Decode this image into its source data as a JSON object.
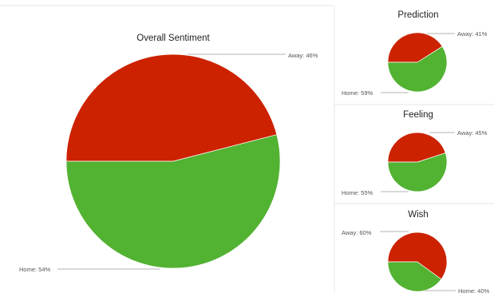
{
  "colors": {
    "away": "#cc2200",
    "home": "#52b232"
  },
  "chart_data": [
    {
      "type": "pie",
      "title": "Overall Sentiment",
      "slices": [
        {
          "name": "Away",
          "value": 46,
          "label": "Away: 46%"
        },
        {
          "name": "Home",
          "value": 54,
          "label": "Home: 54%"
        }
      ]
    },
    {
      "type": "pie",
      "title": "Prediction",
      "slices": [
        {
          "name": "Away",
          "value": 41,
          "label": "Away: 41%"
        },
        {
          "name": "Home",
          "value": 59,
          "label": "Home: 59%"
        }
      ]
    },
    {
      "type": "pie",
      "title": "Feeling",
      "slices": [
        {
          "name": "Away",
          "value": 45,
          "label": "Away: 45%"
        },
        {
          "name": "Home",
          "value": 55,
          "label": "Home: 55%"
        }
      ]
    },
    {
      "type": "pie",
      "title": "Wish",
      "slices": [
        {
          "name": "Away",
          "value": 60,
          "label": "Away: 60%"
        },
        {
          "name": "Home",
          "value": 40,
          "label": "Home: 40%"
        }
      ]
    }
  ]
}
